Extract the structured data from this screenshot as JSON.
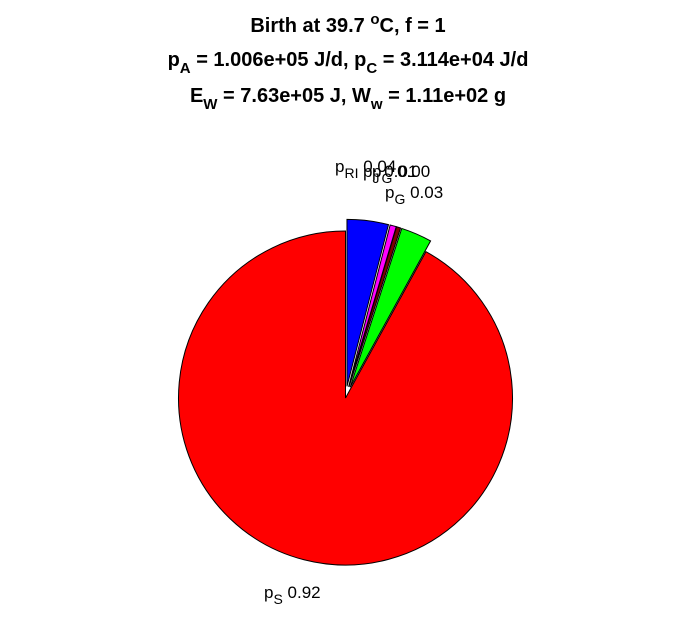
{
  "chart_data": {
    "type": "pie",
    "title": {
      "line1": {
        "prefix": "Birth at 39.7 ",
        "sup": "o",
        "suffix": "C, f = 1"
      },
      "line2": {
        "a_sym": "p",
        "a_sub": "A",
        "a_val": " = 1.006e+05 J/d, ",
        "c_sym": "p",
        "c_sub": "C",
        "c_val": " = 3.114e+04 J/d"
      },
      "line3": {
        "e_sym": "E",
        "e_sub": "W",
        "e_val": " = 7.63e+05 J, ",
        "w_sym": "W",
        "w_sub": "w",
        "w_val": " = 1.11e+02 g"
      }
    },
    "slices": [
      {
        "sym": "p",
        "sub": "S",
        "label": "0.92",
        "value": 0.92,
        "color": "#ff0000"
      },
      {
        "sym": "p",
        "sub": "RI",
        "label": "0.04",
        "value": 0.04,
        "color": "#0000ff"
      },
      {
        "sym": "p",
        "sub": "J",
        "label": "0.01",
        "value": 0.006,
        "color": "#ff00ff"
      },
      {
        "sym": "p",
        "sub": "G",
        "label": "0.00",
        "value": 0.004,
        "color": "#7a0000"
      },
      {
        "sym": "p",
        "sub": "G",
        "label": "0.03",
        "value": 0.03,
        "color": "#00ff00"
      }
    ]
  }
}
